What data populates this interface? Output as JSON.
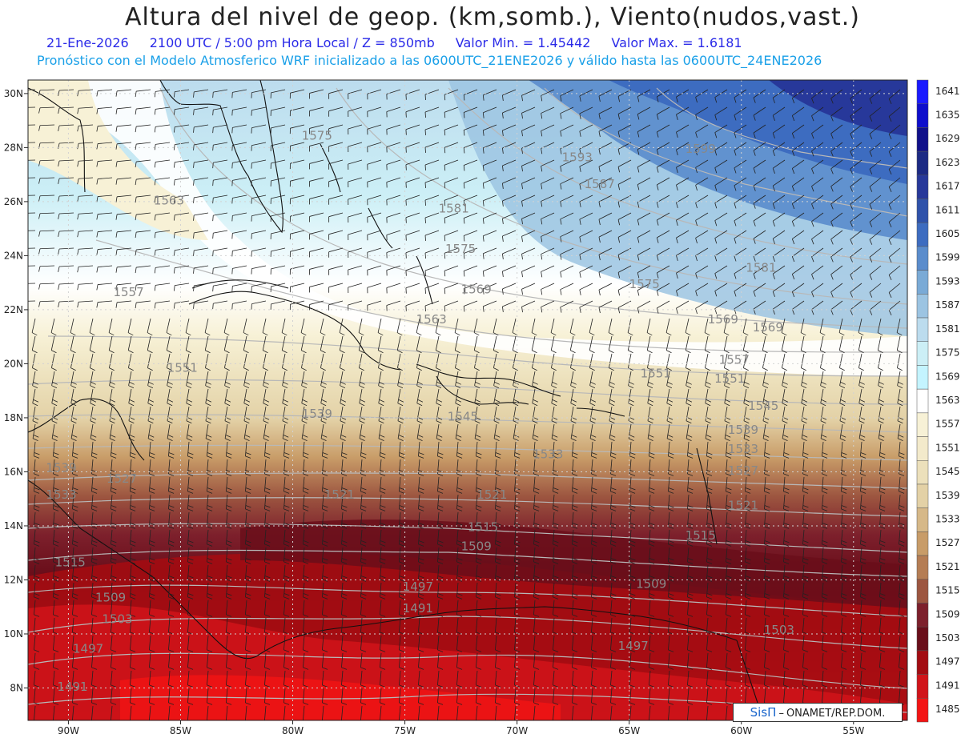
{
  "header": {
    "title": "Altura del nivel de geop. (km,somb.), Viento(nudos,vast.)",
    "date": "21-Ene-2026",
    "time": "2100 UTC / 5:00 pm Hora Local / Z = 850mb",
    "min": "Valor Min. = 1.45442",
    "max": "Valor Max. = 1.6181",
    "model_line": "Pronóstico con el Modelo Atmosferico WRF inicializado a las 0600UTC_21ENE2026 y válido hasta las  0600UTC_24ENE2026"
  },
  "credit": {
    "brand": "SisΠ",
    "dash": "–",
    "org": "ONAMET/REP.DOM."
  },
  "map": {
    "lat_labels": [
      "30N",
      "28N",
      "26N",
      "24N",
      "22N",
      "20N",
      "18N",
      "16N",
      "14N",
      "12N",
      "10N",
      "8N"
    ],
    "lon_labels": [
      "90W",
      "85W",
      "80W",
      "75W",
      "70W",
      "65W",
      "60W",
      "55W"
    ],
    "lat_values": [
      30,
      28,
      26,
      24,
      22,
      20,
      18,
      16,
      14,
      12,
      10,
      8
    ],
    "lon_values": [
      -90,
      -85,
      -80,
      -75,
      -70,
      -65,
      -60,
      -55
    ],
    "lat_range": [
      6.8,
      30.5
    ],
    "lon_range": [
      -91.8,
      -52.6
    ],
    "colorbar": {
      "levels": [
        "1641",
        "1635",
        "1629",
        "1623",
        "1617",
        "1611",
        "1605",
        "1599",
        "1593",
        "1587",
        "1581",
        "1575",
        "1569",
        "1563",
        "1557",
        "1551",
        "1545",
        "1539",
        "1533",
        "1527",
        "1521",
        "1515",
        "1509",
        "1503",
        "1497",
        "1491",
        "1485"
      ],
      "colors": [
        "#1a1aff",
        "#0e0ecc",
        "#10108a",
        "#1c2a84",
        "#27389a",
        "#2f52aa",
        "#3d6cc0",
        "#5a8ccc",
        "#7aaad6",
        "#9cc4e2",
        "#bcdcee",
        "#cceff6",
        "#c4f4ff",
        "#ffffff",
        "#f7f1d6",
        "#f3eacb",
        "#ece0bb",
        "#e3d1a6",
        "#d6b888",
        "#c89c68",
        "#b57d54",
        "#9d5640",
        "#7d202c",
        "#6a0e1a",
        "#a30c12",
        "#d1141a",
        "#f31414"
      ]
    },
    "contour_labels": [
      "1575",
      "1563",
      "1557",
      "1551",
      "1539",
      "1533",
      "1527",
      "1521",
      "1515",
      "1509",
      "1503",
      "1497",
      "1491",
      "1593",
      "1599",
      "1587",
      "1581",
      "1569",
      "1545"
    ]
  }
}
